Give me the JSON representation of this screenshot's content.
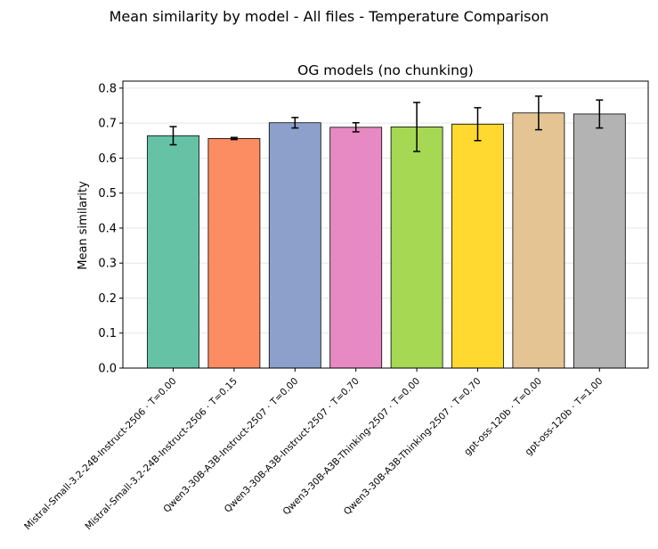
{
  "figure": {
    "suptitle": "Mean similarity by model - All files - Temperature Comparison"
  },
  "chart_data": {
    "type": "bar",
    "title": "OG models (no chunking)",
    "xlabel": "",
    "ylabel": "Mean similarity",
    "ylim": [
      0,
      0.82
    ],
    "yticks": [
      0.0,
      0.1,
      0.2,
      0.3,
      0.4,
      0.5,
      0.6,
      0.7,
      0.8
    ],
    "ytick_labels": [
      "0.0",
      "0.1",
      "0.2",
      "0.3",
      "0.4",
      "0.5",
      "0.6",
      "0.7",
      "0.8"
    ],
    "grid": "horizontal",
    "categories": [
      "Mistral-Small-3.2-24B-Instruct-2506 · T=0.00",
      "Mistral-Small-3.2-24B-Instruct-2506 · T=0.15",
      "Qwen3-30B-A3B-Instruct-2507 · T=0.00",
      "Qwen3-30B-A3B-Instruct-2507 · T=0.70",
      "Qwen3-30B-A3B-Thinking-2507 · T=0.00",
      "Qwen3-30B-A3B-Thinking-2507 · T=0.70",
      "gpt-oss-120b · T=0.00",
      "gpt-oss-120b · T=1.00"
    ],
    "values": [
      0.664,
      0.656,
      0.701,
      0.688,
      0.689,
      0.697,
      0.729,
      0.726
    ],
    "errors": [
      0.026,
      0.003,
      0.015,
      0.013,
      0.07,
      0.047,
      0.048,
      0.04
    ],
    "colors": [
      "#66c2a5",
      "#fc8d62",
      "#8da0cb",
      "#e78ac3",
      "#a6d854",
      "#ffd92f",
      "#e5c494",
      "#b3b3b3"
    ]
  }
}
